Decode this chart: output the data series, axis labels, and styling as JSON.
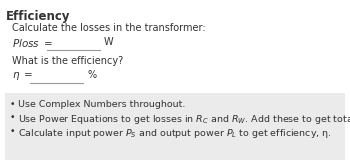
{
  "title": "Efficiency",
  "line1": "Calculate the losses in the transformer:",
  "ploss_unit": "W",
  "efficiency_question": "What is the efficiency?",
  "eta_unit": "%",
  "bullet1": "Use Complex Numbers throughout.",
  "bullet2_pre": "Use Power Equations to get losses in ",
  "bullet2_mid": " and ",
  "bullet2_post": ". Add these to get total ",
  "bullet2_end": ".",
  "bullet3_pre": "Calculate input power ",
  "bullet3_mid": " and output power ",
  "bullet3_post": " to get efficiency, η.",
  "bg_color": "#ffffff",
  "box_color": "#ebebeb",
  "text_color": "#333333",
  "title_fontsize": 8.5,
  "body_fontsize": 7.0,
  "bullet_fontsize": 6.8
}
